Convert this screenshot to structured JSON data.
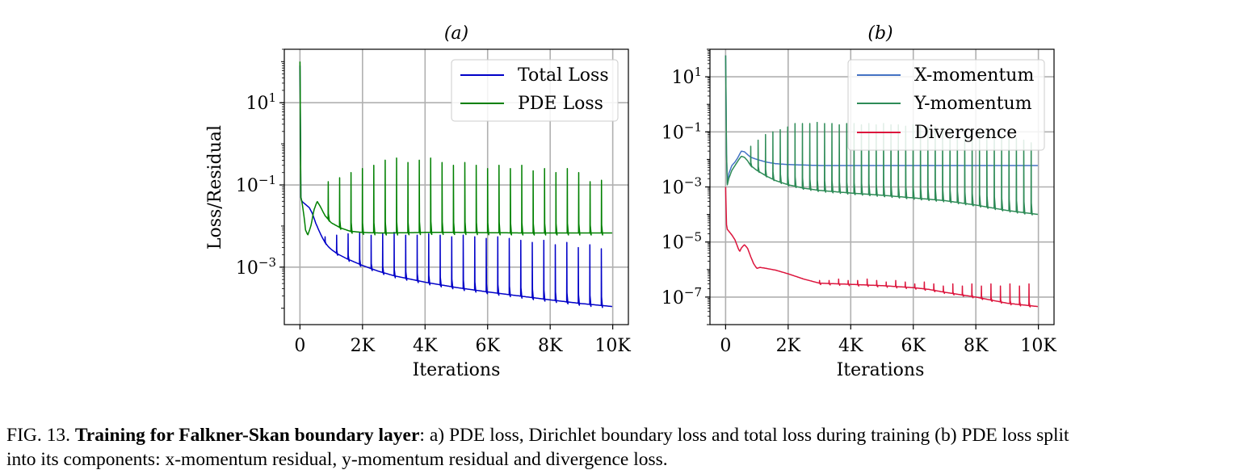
{
  "chart_data": [
    {
      "type": "line",
      "title": "(a)",
      "xlabel": "Iterations",
      "ylabel": "Loss/Residual",
      "yscale": "log",
      "xlim": [
        -500,
        10500
      ],
      "ylim": [
        4e-05,
        200
      ],
      "xticks": [
        0,
        2000,
        4000,
        6000,
        8000,
        10000
      ],
      "xtick_labels": [
        "0",
        "2K",
        "4K",
        "6K",
        "8K",
        "10K"
      ],
      "yticks": [
        10,
        0.1,
        0.001
      ],
      "ytick_bases": [
        "10",
        "10",
        "10"
      ],
      "ytick_exps": [
        "1",
        "−1",
        "−3"
      ],
      "grid": true,
      "legend_position": "top-right",
      "series": [
        {
          "name": "Total Loss",
          "color": "#0000c8",
          "x": [
            0,
            30,
            60,
            150,
            300,
            400,
            500,
            600,
            700,
            800,
            900,
            1000,
            1200,
            1500,
            2000,
            2500,
            3000,
            4000,
            5000,
            6000,
            7000,
            8000,
            9000,
            10000
          ],
          "y": [
            80,
            0.05,
            0.04,
            0.035,
            0.028,
            0.02,
            0.012,
            0.008,
            0.0055,
            0.004,
            0.0032,
            0.0027,
            0.0021,
            0.0016,
            0.0011,
            0.0008,
            0.00062,
            0.00043,
            0.00032,
            0.00025,
            0.0002,
            0.00016,
            0.00013,
            0.00011
          ],
          "spikes": {
            "start": 800,
            "end": 10000,
            "count": 26,
            "peaks": [
              0.0055,
              0.006,
              0.0065,
              0.007,
              0.006,
              0.0065,
              0.007,
              0.006,
              0.006,
              0.0065,
              0.006,
              0.0055,
              0.006,
              0.0055,
              0.005,
              0.0055,
              0.005,
              0.0045,
              0.004,
              0.0045,
              0.0035,
              0.004,
              0.003,
              0.0035,
              0.0028,
              0.0015
            ]
          }
        },
        {
          "name": "PDE Loss",
          "color": "#008000",
          "x": [
            0,
            30,
            60,
            120,
            180,
            250,
            350,
            450,
            550,
            650,
            800,
            1000,
            1300,
            1600,
            2000,
            2500,
            3000,
            4000,
            5000,
            6000,
            7000,
            8000,
            9000,
            10000
          ],
          "y": [
            100,
            0.05,
            0.04,
            0.02,
            0.008,
            0.006,
            0.01,
            0.025,
            0.04,
            0.03,
            0.018,
            0.012,
            0.009,
            0.0075,
            0.007,
            0.0068,
            0.0068,
            0.007,
            0.007,
            0.0069,
            0.0068,
            0.0068,
            0.0068,
            0.0068
          ],
          "spikes": {
            "start": 900,
            "end": 10000,
            "count": 26,
            "peaks": [
              0.12,
              0.15,
              0.2,
              0.25,
              0.3,
              0.4,
              0.45,
              0.35,
              0.4,
              0.45,
              0.35,
              0.3,
              0.35,
              0.3,
              0.25,
              0.3,
              0.25,
              0.3,
              0.22,
              0.25,
              0.2,
              0.25,
              0.2,
              0.12,
              0.13,
              0.15
            ]
          }
        }
      ]
    },
    {
      "type": "line",
      "title": "(b)",
      "xlabel": "Iterations",
      "ylabel": "",
      "yscale": "log",
      "xlim": [
        -500,
        10500
      ],
      "ylim": [
        1e-08,
        100
      ],
      "xticks": [
        0,
        2000,
        4000,
        6000,
        8000,
        10000
      ],
      "xtick_labels": [
        "0",
        "2K",
        "4K",
        "6K",
        "8K",
        "10K"
      ],
      "yticks": [
        10,
        0.1,
        0.001,
        1e-05,
        1e-07
      ],
      "ytick_bases": [
        "10",
        "10",
        "10",
        "10",
        "10"
      ],
      "ytick_exps": [
        "1",
        "−1",
        "−3",
        "−5",
        "−7"
      ],
      "grid": true,
      "legend_position": "top-right",
      "series": [
        {
          "name": "X-momentum",
          "color": "#4472c4",
          "x": [
            0,
            40,
            100,
            200,
            300,
            400,
            500,
            600,
            700,
            800,
            1000,
            1300,
            1600,
            2000,
            3000,
            4000,
            5000,
            6000,
            7000,
            8000,
            9000,
            10000
          ],
          "y": [
            60,
            0.001,
            0.003,
            0.006,
            0.008,
            0.012,
            0.02,
            0.019,
            0.015,
            0.012,
            0.01,
            0.008,
            0.007,
            0.0065,
            0.006,
            0.006,
            0.006,
            0.006,
            0.006,
            0.006,
            0.006,
            0.006
          ],
          "spikes": null
        },
        {
          "name": "Y-momentum",
          "color": "#2e8b57",
          "x": [
            0,
            40,
            100,
            200,
            300,
            400,
            500,
            600,
            700,
            800,
            1000,
            1300,
            1600,
            2000,
            2500,
            3000,
            4000,
            5000,
            6000,
            7000,
            8000,
            9000,
            10000
          ],
          "y": [
            60,
            0.001,
            0.002,
            0.004,
            0.006,
            0.009,
            0.013,
            0.012,
            0.009,
            0.006,
            0.004,
            0.0025,
            0.0017,
            0.0012,
            0.0009,
            0.00075,
            0.0006,
            0.0005,
            0.0004,
            0.00032,
            0.00022,
            0.00014,
            0.0001
          ],
          "spikes": {
            "start": 800,
            "end": 10000,
            "count": 40,
            "peaks": [
              0.03,
              0.05,
              0.08,
              0.1,
              0.12,
              0.15,
              0.2,
              0.2,
              0.2,
              0.22,
              0.2,
              0.2,
              0.18,
              0.2,
              0.2,
              0.18,
              0.2,
              0.18,
              0.2,
              0.18,
              0.18,
              0.16,
              0.18,
              0.16,
              0.15,
              0.15,
              0.14,
              0.13,
              0.12,
              0.12,
              0.1,
              0.1,
              0.08,
              0.1,
              0.07,
              0.08,
              0.06,
              0.05,
              0.04,
              0.03
            ]
          }
        },
        {
          "name": "Divergence",
          "color": "#dc143c",
          "x": [
            0,
            20,
            40,
            100,
            200,
            300,
            400,
            450,
            500,
            600,
            700,
            800,
            900,
            1000,
            1100,
            1300,
            1600,
            2000,
            2500,
            3000,
            4000,
            5000,
            6000,
            6500,
            7000,
            8000,
            9000,
            10000
          ],
          "y": [
            0.001,
            6e-05,
            3e-05,
            2.5e-05,
            1.8e-05,
            1.2e-05,
            6e-06,
            4.5e-06,
            6e-06,
            8e-06,
            6e-06,
            3e-06,
            1.6e-06,
            1.1e-06,
            1.2e-06,
            1.1e-06,
            9.5e-07,
            7e-07,
            4.5e-07,
            3.2e-07,
            2.9e-07,
            2.6e-07,
            2.2e-07,
            1.9e-07,
            1.5e-07,
            1e-07,
            6e-08,
            4.5e-08
          ],
          "spikes": {
            "start": 3000,
            "end": 10000,
            "count": 24,
            "peaks": [
              4e-07,
              4e-07,
              4.5e-07,
              4e-07,
              4e-07,
              4.5e-07,
              4e-07,
              3.5e-07,
              4e-07,
              3.5e-07,
              3e-07,
              3.5e-07,
              3e-07,
              2.5e-07,
              3e-07,
              2.5e-07,
              3e-07,
              2.5e-07,
              3e-07,
              2.5e-07,
              3e-07,
              2.5e-07,
              3e-07,
              3e-07
            ]
          }
        }
      ]
    }
  ],
  "caption": {
    "fig_label": "FIG. 13.",
    "bold_title": "Training for Falkner-Skan boundary layer",
    "line1_rest": ": a) PDE loss, Dirichlet boundary loss and total loss during training (b) PDE loss split",
    "line2": "into its components: x-momentum residual, y-momentum residual and divergence loss."
  }
}
